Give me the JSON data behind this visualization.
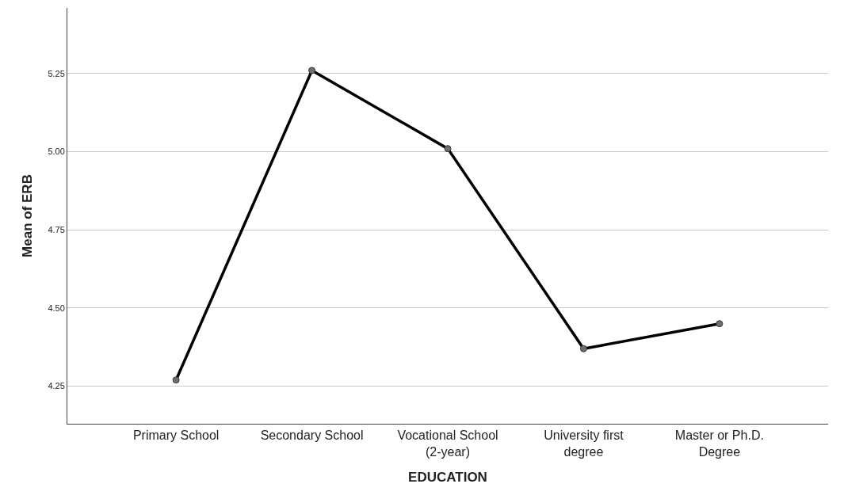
{
  "chart_data": {
    "type": "line",
    "xlabel": "EDUCATION",
    "ylabel": "Mean of ERB",
    "categories": [
      "Primary School",
      "Secondary School",
      "Vocational School\n(2-year)",
      "University first\ndegree",
      "Master or Ph.D.\nDegree"
    ],
    "series": [
      {
        "color": "#000000",
        "values": [
          4.27,
          5.26,
          5.01,
          4.37,
          4.45
        ]
      }
    ],
    "ylim": [
      4.13,
      5.46
    ],
    "yticks": [
      {
        "value": 4.25,
        "label": "4.25"
      },
      {
        "value": 4.5,
        "label": "4.50"
      },
      {
        "value": 4.75,
        "label": "4.75"
      },
      {
        "value": 5.0,
        "label": "5.00"
      },
      {
        "value": 5.25,
        "label": "5.25"
      }
    ],
    "grid": "y",
    "marker": "circle",
    "line_style": "solid"
  }
}
